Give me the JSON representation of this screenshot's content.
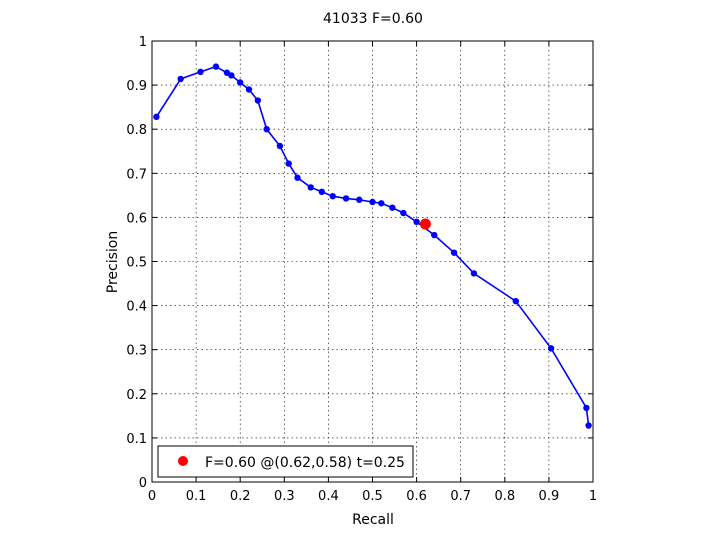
{
  "chart_data": {
    "type": "line",
    "title": "41033 F=0.60",
    "xlabel": "Recall",
    "ylabel": "Precision",
    "xlim": [
      0,
      1
    ],
    "ylim": [
      0,
      1
    ],
    "xticks": [
      "0",
      "0.1",
      "0.2",
      "0.3",
      "0.4",
      "0.5",
      "0.6",
      "0.7",
      "0.8",
      "0.9",
      "1"
    ],
    "yticks": [
      "0",
      "0.1",
      "0.2",
      "0.3",
      "0.4",
      "0.5",
      "0.6",
      "0.7",
      "0.8",
      "0.9",
      "1"
    ],
    "grid": true,
    "legend_position": "bottom-left",
    "series": [
      {
        "color": "#0000ff",
        "x": [
          0.01,
          0.065,
          0.11,
          0.145,
          0.17,
          0.18,
          0.2,
          0.22,
          0.24,
          0.26,
          0.29,
          0.31,
          0.33,
          0.36,
          0.385,
          0.41,
          0.44,
          0.47,
          0.5,
          0.52,
          0.545,
          0.57,
          0.6,
          0.64,
          0.685,
          0.73,
          0.825,
          0.905,
          0.985,
          0.99
        ],
        "y": [
          0.828,
          0.914,
          0.93,
          0.942,
          0.928,
          0.922,
          0.906,
          0.89,
          0.865,
          0.8,
          0.762,
          0.722,
          0.69,
          0.668,
          0.658,
          0.648,
          0.643,
          0.64,
          0.635,
          0.632,
          0.622,
          0.61,
          0.59,
          0.56,
          0.52,
          0.473,
          0.41,
          0.303,
          0.168,
          0.128
        ]
      }
    ],
    "best_point": {
      "x": 0.62,
      "y": 0.585,
      "color": "#ff0000",
      "label": "F=0.60 @(0.62,0.58) t=0.25"
    }
  }
}
